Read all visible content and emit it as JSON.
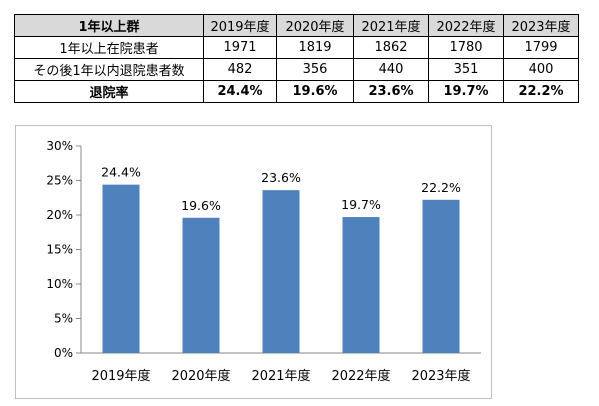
{
  "table": {
    "corner": "1年以上群",
    "headers": [
      "2019年度",
      "2020年度",
      "2021年度",
      "2022年度",
      "2023年度"
    ],
    "rows": [
      {
        "label": "1年以上在院患者",
        "values": [
          "1971",
          "1819",
          "1862",
          "1780",
          "1799"
        ]
      },
      {
        "label": "その後1年以内退院患者数",
        "values": [
          "482",
          "356",
          "440",
          "351",
          "400"
        ]
      },
      {
        "label": "退院率",
        "values": [
          "24.4%",
          "19.6%",
          "23.6%",
          "19.7%",
          "22.2%"
        ]
      }
    ]
  },
  "chart_data": {
    "type": "bar",
    "categories": [
      "2019年度",
      "2020年度",
      "2021年度",
      "2022年度",
      "2023年度"
    ],
    "values": [
      24.4,
      19.6,
      23.6,
      19.7,
      22.2
    ],
    "value_labels": [
      "24.4%",
      "19.6%",
      "23.6%",
      "19.7%",
      "22.2%"
    ],
    "y_ticks": [
      "0%",
      "5%",
      "10%",
      "15%",
      "20%",
      "25%",
      "30%"
    ],
    "ylim": [
      0,
      30
    ],
    "bar_color": "#4f81bd",
    "grid": false,
    "legend": false
  }
}
